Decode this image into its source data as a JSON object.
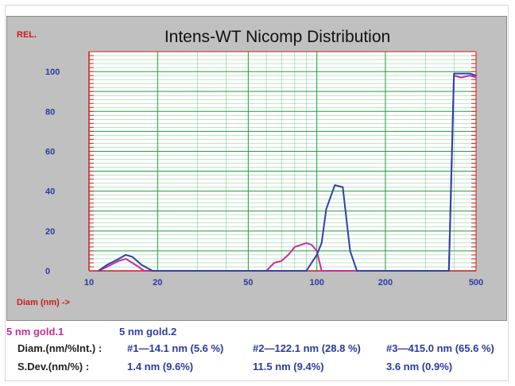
{
  "chart_data": {
    "type": "line",
    "title": "Intens-WT Nicomp Distribution",
    "ylabel": "REL.",
    "xlabel": "Diam (nm) ->",
    "x_scale": "log",
    "xlim": [
      10,
      500
    ],
    "ylim": [
      0,
      110
    ],
    "x_tick_labels": [
      "10",
      "20",
      "50",
      "100",
      "200",
      "500"
    ],
    "x_ticks": [
      10,
      20,
      50,
      100,
      200,
      500
    ],
    "y_ticks": [
      0,
      20,
      40,
      60,
      80,
      100
    ],
    "y_tick_labels": [
      "0",
      "20",
      "40",
      "60",
      "80",
      "100"
    ],
    "series": [
      {
        "name": "5 nm gold.1",
        "color": "#c2309a",
        "x": [
          11,
          12,
          13.5,
          14.5,
          16,
          17.5,
          20,
          30,
          60,
          65,
          70,
          75,
          80,
          85,
          90,
          95,
          100,
          105,
          130,
          200,
          300,
          380,
          400,
          430,
          470,
          500
        ],
        "y": [
          0,
          2,
          5,
          6,
          3,
          0,
          0,
          0,
          0,
          4,
          5,
          8,
          12,
          13,
          14,
          13,
          10,
          0,
          0,
          0,
          0,
          0,
          98,
          97,
          98,
          97
        ]
      },
      {
        "name": "5 nm gold.2",
        "color": "#3040a8",
        "x": [
          11,
          12,
          13.5,
          14.5,
          15.5,
          17,
          19,
          30,
          60,
          90,
          100,
          105,
          110,
          120,
          130,
          140,
          150,
          200,
          300,
          380,
          400,
          430,
          470,
          500
        ],
        "y": [
          0,
          3,
          6,
          8,
          7,
          3,
          0,
          0,
          0,
          0,
          8,
          14,
          31,
          43,
          42,
          10,
          0,
          0,
          0,
          0,
          99,
          99,
          99,
          98
        ]
      }
    ]
  },
  "legend": {
    "series1": "5 nm gold.1",
    "series2": "5 nm gold.2"
  },
  "stats": {
    "diam_label": "Diam.(nm/%Int.) :",
    "peak1": "#1—14.1 nm (5.6 %)",
    "peak2": "#2—122.1 nm (28.8 %)",
    "peak3": "#3—415.0 nm (65.6 %)",
    "sdev_label": "S.Dev.(nm/%) :",
    "sdev1": "1.4 nm (9.6%)",
    "sdev2": "11.5 nm (9.4%)",
    "sdev3": "3.6 nm (0.9%)"
  },
  "colors": {
    "panel": "#c0c0c0",
    "grid": "#1a9e3a",
    "axis_red": "#cc1a1a",
    "tick_label": "#2a3a9e"
  }
}
